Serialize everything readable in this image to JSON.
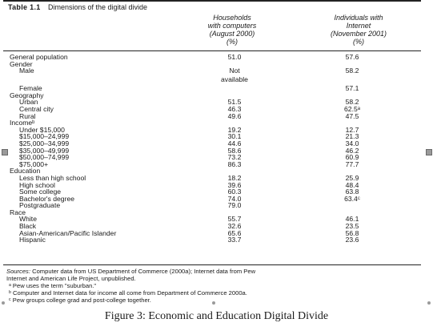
{
  "table": {
    "label": "Table 1.1",
    "title": "Dimensions of the digital divide",
    "col1_header": "Households\nwith computers\n(August 2000)\n(%)",
    "col2_header": "Individuals with\nInternet\n(November 2001)\n(%)",
    "rows": [
      {
        "label": "General population",
        "v1": "51.0",
        "v2": "57.6",
        "sub": false
      },
      {
        "label": "Gender",
        "v1": "",
        "v2": "",
        "sub": false
      },
      {
        "label": "Male",
        "v1": "Not",
        "v2": "58.2",
        "sub": true
      },
      {
        "label": "",
        "v1": "available",
        "v2": "",
        "sub": true
      },
      {
        "label": "Female",
        "v1": "",
        "v2": "57.1",
        "sub": true
      },
      {
        "label": "Geography",
        "v1": "",
        "v2": "",
        "sub": false
      },
      {
        "label": "Urban",
        "v1": "51.5",
        "v2": "58.2",
        "sub": true
      },
      {
        "label": "Central city",
        "v1": "46.3",
        "v2": "62.5ᵃ",
        "sub": true
      },
      {
        "label": "Rural",
        "v1": "49.6",
        "v2": "47.5",
        "sub": true
      },
      {
        "label": "Incomeᵇ",
        "v1": "",
        "v2": "",
        "sub": false
      },
      {
        "label": "Under $15,000",
        "v1": "19.2",
        "v2": "12.7",
        "sub": true
      },
      {
        "label": "$15,000–24,999",
        "v1": "30.1",
        "v2": "21.3",
        "sub": true
      },
      {
        "label": "$25,000–34,999",
        "v1": "44.6",
        "v2": "34.0",
        "sub": true
      },
      {
        "label": "$35,000–49,999",
        "v1": "58.6",
        "v2": "46.2",
        "sub": true
      },
      {
        "label": "$50,000–74,999",
        "v1": "73.2",
        "v2": "60.9",
        "sub": true
      },
      {
        "label": "$75,000+",
        "v1": "86.3",
        "v2": "77.7",
        "sub": true
      },
      {
        "label": "Education",
        "v1": "",
        "v2": "",
        "sub": false
      },
      {
        "label": "Less than high school",
        "v1": "18.2",
        "v2": "25.9",
        "sub": true
      },
      {
        "label": "High school",
        "v1": "39.6",
        "v2": "48.4",
        "sub": true
      },
      {
        "label": "Some college",
        "v1": "60.3",
        "v2": "63.8",
        "sub": true
      },
      {
        "label": "Bachelor's degree",
        "v1": "74.0",
        "v2": "63.4ᶜ",
        "sub": true
      },
      {
        "label": "Postgraduate",
        "v1": "79.0",
        "v2": "",
        "sub": true
      },
      {
        "label": "Race",
        "v1": "",
        "v2": "",
        "sub": false
      },
      {
        "label": "White",
        "v1": "55.7",
        "v2": "46.1",
        "sub": true
      },
      {
        "label": "Black",
        "v1": "32.6",
        "v2": "23.5",
        "sub": true
      },
      {
        "label": "Asian-American/Pacific Islander",
        "v1": "65.6",
        "v2": "56.8",
        "sub": true
      },
      {
        "label": "Hispanic",
        "v1": "33.7",
        "v2": "23.6",
        "sub": true
      }
    ]
  },
  "sources": {
    "label": "Sources:",
    "line1": "Computer data from US Department of Commerce (2000a); Internet data from Pew",
    "line2": "Internet and American Life Project, unpublished.",
    "note_a": "ᵃ Pew uses the term \"suburban.\"",
    "note_b": "ᵇ Computer and Internet data for income all come from Department of Commerce 2000a.",
    "note_c": "ᶜ Pew groups college grad and post-college together."
  },
  "caption": "Figure 3: Economic and Education Digital Divide"
}
